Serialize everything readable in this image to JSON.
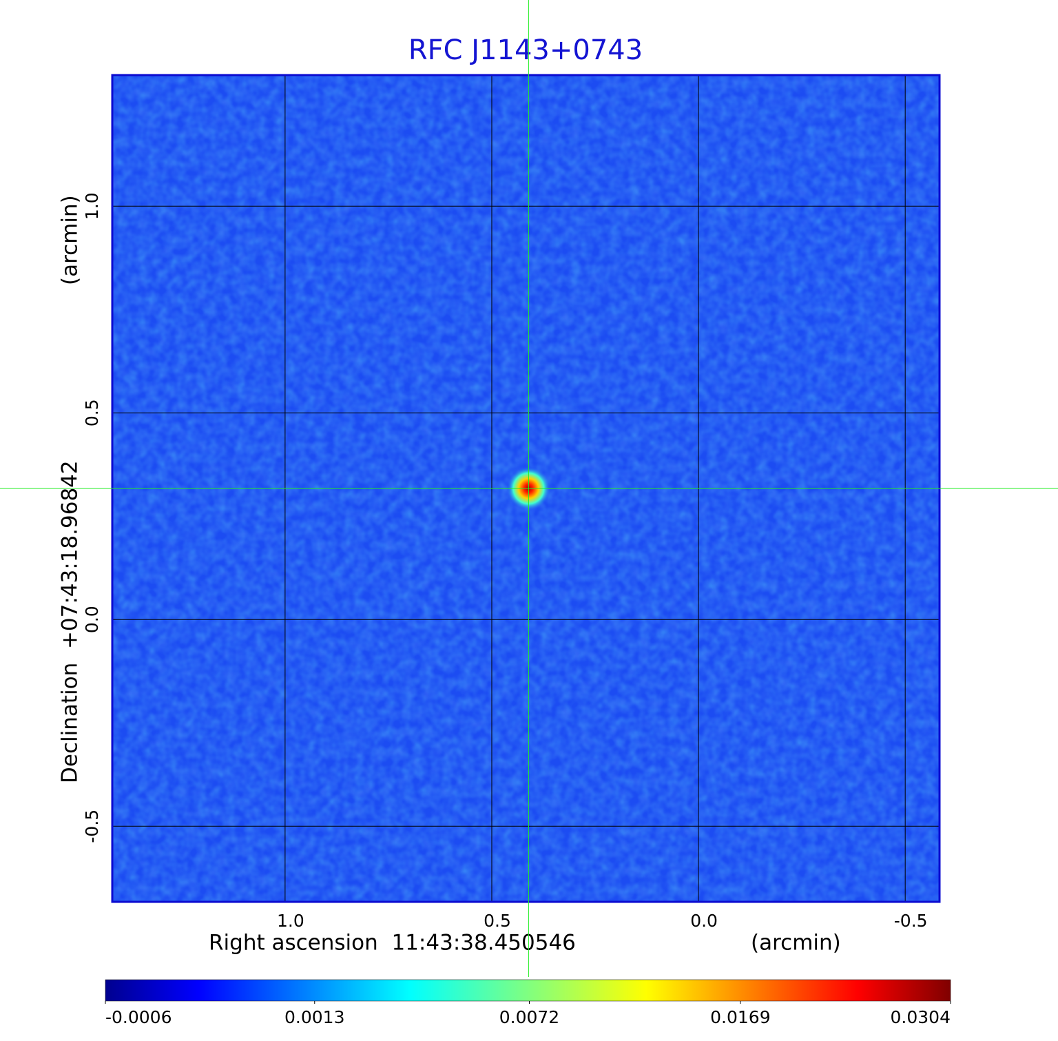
{
  "chart_data": {
    "type": "image",
    "title": "RFC J1143+0743",
    "x_label": "Right ascension  11:43:38.450546",
    "x_unit": "(arcmin)",
    "y_label": "Declination  +07:43:18.96842",
    "y_unit": "(arcmin)",
    "xlim": [
      1.418,
      -0.583
    ],
    "ylim": [
      -0.683,
      1.317
    ],
    "xticks": [
      {
        "value": 1,
        "label": "1.0"
      },
      0.5,
      {
        "value": 0,
        "label": "0.0"
      },
      -0.5
    ],
    "yticks": [
      {
        "value": 1,
        "label": "1.0"
      },
      0.5,
      {
        "value": 0,
        "label": "0.0"
      },
      -0.5
    ],
    "grid": true,
    "crosshair": {
      "x": 0.411,
      "y": 0.317
    },
    "colormap": "jet",
    "colorbar": {
      "scale": "sqrt",
      "ticks": [
        -0.0006,
        0.0013,
        0.0072,
        0.0169,
        0.0304
      ]
    }
  }
}
